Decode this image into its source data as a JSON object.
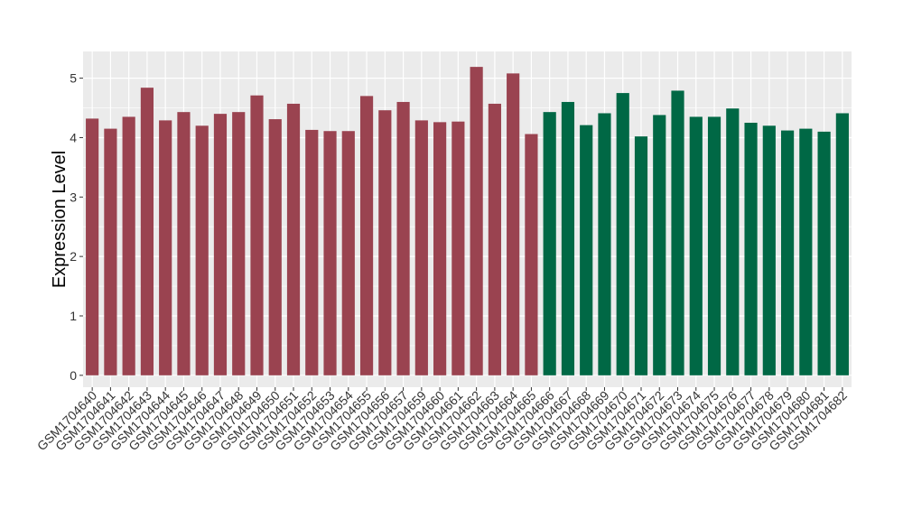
{
  "chart_data": {
    "type": "bar",
    "title": "",
    "xlabel": "",
    "ylabel": "Expression Level",
    "ylim": [
      -0.2,
      5.45
    ],
    "yticks": [
      0,
      1,
      2,
      3,
      4,
      5
    ],
    "ytick_labels": [
      "0",
      "1",
      "2",
      "3",
      "4",
      "5"
    ],
    "grid": true,
    "legend": "none",
    "colors": {
      "group1": "#9a4350",
      "group2": "#006845",
      "panel_bg": "#ebebeb",
      "grid": "#ffffff"
    },
    "categories": [
      "GSM1704640",
      "GSM1704641",
      "GSM1704642",
      "GSM1704643",
      "GSM1704644",
      "GSM1704645",
      "GSM1704646",
      "GSM1704647",
      "GSM1704648",
      "GSM1704649",
      "GSM1704650",
      "GSM1704651",
      "GSM1704652",
      "GSM1704653",
      "GSM1704654",
      "GSM1704655",
      "GSM1704656",
      "GSM1704657",
      "GSM1704659",
      "GSM1704660",
      "GSM1704661",
      "GSM1704662",
      "GSM1704663",
      "GSM1704664",
      "GSM1704665",
      "GSM1704666",
      "GSM1704667",
      "GSM1704668",
      "GSM1704669",
      "GSM1704670",
      "GSM1704671",
      "GSM1704672",
      "GSM1704673",
      "GSM1704674",
      "GSM1704675",
      "GSM1704676",
      "GSM1704677",
      "GSM1704678",
      "GSM1704679",
      "GSM1704680",
      "GSM1704681",
      "GSM1704682"
    ],
    "values": [
      4.32,
      4.15,
      4.35,
      4.84,
      4.29,
      4.43,
      4.2,
      4.4,
      4.43,
      4.71,
      4.31,
      4.57,
      4.13,
      4.11,
      4.11,
      4.7,
      4.46,
      4.6,
      4.29,
      4.26,
      4.27,
      5.19,
      4.57,
      5.08,
      4.06,
      4.43,
      4.6,
      4.21,
      4.41,
      4.75,
      4.02,
      4.38,
      4.79,
      4.35,
      4.35,
      4.49,
      4.25,
      4.2,
      4.12,
      4.15,
      4.1,
      4.41
    ],
    "groups": [
      1,
      1,
      1,
      1,
      1,
      1,
      1,
      1,
      1,
      1,
      1,
      1,
      1,
      1,
      1,
      1,
      1,
      1,
      1,
      1,
      1,
      1,
      1,
      1,
      1,
      2,
      2,
      2,
      2,
      2,
      2,
      2,
      2,
      2,
      2,
      2,
      2,
      2,
      2,
      2,
      2,
      2
    ]
  }
}
